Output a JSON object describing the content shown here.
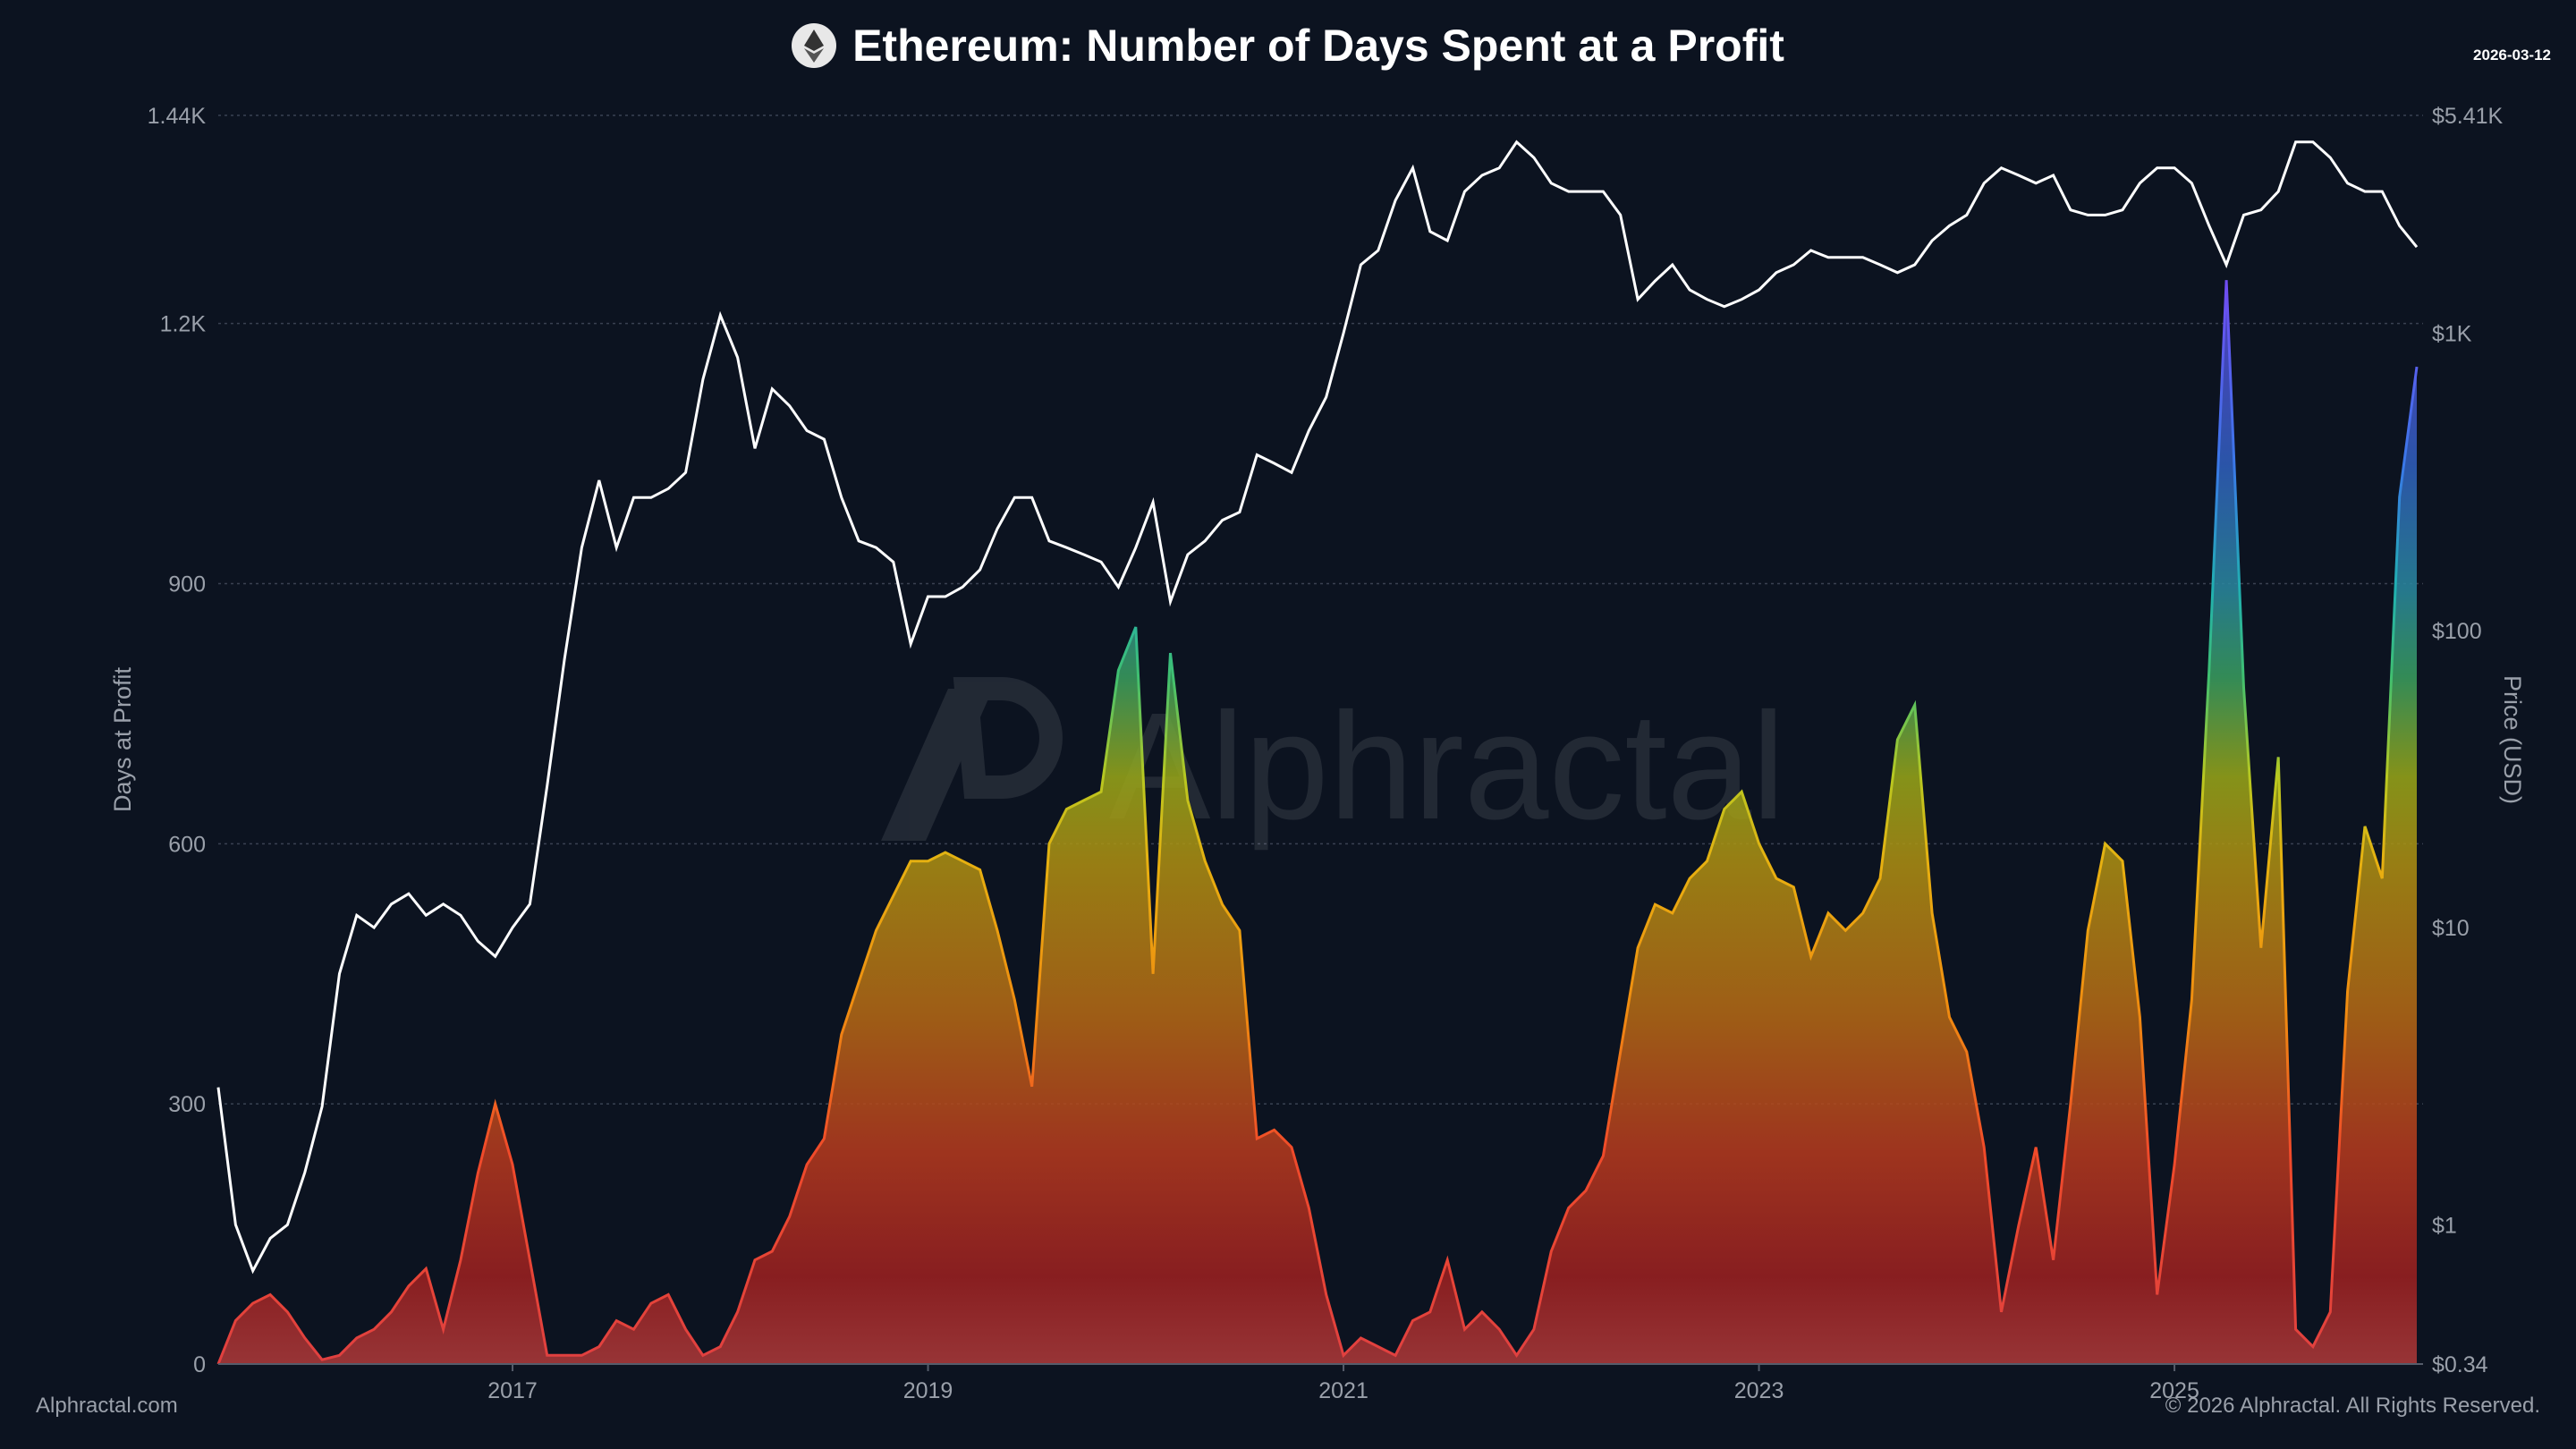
{
  "header": {
    "title": "Ethereum: Number of Days Spent at a Profit",
    "date": "2026-03-12",
    "icon": "ethereum-logo-icon"
  },
  "footer": {
    "left": "Alphractal.com",
    "right": "© 2026 Alphractal. All Rights Reserved."
  },
  "watermark": "Alphractal",
  "chart_data": {
    "type": "area",
    "title": "Ethereum: Number of Days Spent at a Profit",
    "ylabel": "Days at Profit",
    "y2label": "Price (USD)",
    "ylim": [
      0,
      1440
    ],
    "y2lim": [
      0.34,
      5410
    ],
    "y2scale": "log",
    "xlim": [
      "2015-08",
      "2026-03"
    ],
    "grid": true,
    "yticks": [
      "0",
      "300",
      "600",
      "900",
      "1.2K",
      "1.44K"
    ],
    "ytick_values": [
      0,
      300,
      600,
      900,
      1200,
      1440
    ],
    "y2ticks": [
      "$0.34",
      "$1",
      "$10",
      "$100",
      "$1K",
      "$5.41K"
    ],
    "y2tick_values": [
      0.34,
      1,
      10,
      100,
      1000,
      5410
    ],
    "xticks": [
      "2017",
      "2019",
      "2021",
      "2023",
      "2025"
    ],
    "colors": {
      "low": "#c0392b",
      "mid": "#e08a10",
      "high_mid": "#b8c020",
      "high": "#3aa0a0",
      "higher": "#3b6fe0",
      "max": "#9b30ff",
      "price": "#ffffff"
    },
    "dates": [
      "2015-08",
      "2015-09",
      "2015-10",
      "2015-11",
      "2015-12",
      "2016-01",
      "2016-02",
      "2016-03",
      "2016-04",
      "2016-05",
      "2016-06",
      "2016-07",
      "2016-08",
      "2016-09",
      "2016-10",
      "2016-11",
      "2016-12",
      "2017-01",
      "2017-02",
      "2017-03",
      "2017-04",
      "2017-05",
      "2017-06",
      "2017-07",
      "2017-08",
      "2017-09",
      "2017-10",
      "2017-11",
      "2017-12",
      "2018-01",
      "2018-02",
      "2018-03",
      "2018-04",
      "2018-05",
      "2018-06",
      "2018-07",
      "2018-08",
      "2018-09",
      "2018-10",
      "2018-11",
      "2018-12",
      "2019-01",
      "2019-02",
      "2019-03",
      "2019-04",
      "2019-05",
      "2019-06",
      "2019-07",
      "2019-08",
      "2019-09",
      "2019-10",
      "2019-11",
      "2019-12",
      "2020-01",
      "2020-02",
      "2020-03",
      "2020-04",
      "2020-05",
      "2020-06",
      "2020-07",
      "2020-08",
      "2020-09",
      "2020-10",
      "2020-11",
      "2020-12",
      "2021-01",
      "2021-02",
      "2021-03",
      "2021-04",
      "2021-05",
      "2021-06",
      "2021-07",
      "2021-08",
      "2021-09",
      "2021-10",
      "2021-11",
      "2021-12",
      "2022-01",
      "2022-02",
      "2022-03",
      "2022-04",
      "2022-05",
      "2022-06",
      "2022-07",
      "2022-08",
      "2022-09",
      "2022-10",
      "2022-11",
      "2022-12",
      "2023-01",
      "2023-02",
      "2023-03",
      "2023-04",
      "2023-05",
      "2023-06",
      "2023-07",
      "2023-08",
      "2023-09",
      "2023-10",
      "2023-11",
      "2023-12",
      "2024-01",
      "2024-02",
      "2024-03",
      "2024-04",
      "2024-05",
      "2024-06",
      "2024-07",
      "2024-08",
      "2024-09",
      "2024-10",
      "2024-11",
      "2024-12",
      "2025-01",
      "2025-02",
      "2025-03",
      "2025-04",
      "2025-05",
      "2025-06",
      "2025-07",
      "2025-08",
      "2025-09",
      "2025-10",
      "2025-11",
      "2025-12",
      "2026-01",
      "2026-02",
      "2026-03"
    ],
    "series": [
      {
        "name": "Days at Profit",
        "axis": "left",
        "values": [
          0,
          50,
          70,
          80,
          60,
          30,
          5,
          10,
          30,
          40,
          60,
          90,
          110,
          40,
          120,
          220,
          300,
          230,
          120,
          10,
          10,
          10,
          20,
          50,
          40,
          70,
          80,
          40,
          10,
          20,
          60,
          120,
          130,
          170,
          230,
          260,
          380,
          440,
          500,
          540,
          580,
          580,
          590,
          580,
          570,
          500,
          420,
          320,
          600,
          640,
          650,
          660,
          800,
          850,
          450,
          820,
          650,
          580,
          530,
          500,
          260,
          270,
          250,
          180,
          80,
          10,
          30,
          20,
          10,
          50,
          60,
          120,
          40,
          60,
          40,
          10,
          40,
          130,
          180,
          200,
          240,
          360,
          480,
          530,
          520,
          560,
          580,
          640,
          660,
          600,
          560,
          550,
          470,
          520,
          500,
          520,
          560,
          720,
          760,
          520,
          400,
          360,
          250,
          60,
          160,
          250,
          120,
          300,
          500,
          600,
          580,
          400,
          80,
          230,
          420,
          800,
          1250,
          780,
          480,
          700,
          40,
          20,
          60,
          430,
          620,
          560,
          1000,
          1150
        ]
      },
      {
        "name": "Price (USD)",
        "axis": "right",
        "values": [
          2.9,
          1.0,
          0.7,
          0.9,
          1.0,
          1.5,
          2.5,
          7,
          11,
          10,
          12,
          13,
          11,
          12,
          11,
          9,
          8,
          10,
          12,
          30,
          80,
          190,
          320,
          190,
          280,
          280,
          300,
          340,
          700,
          1150,
          830,
          410,
          650,
          570,
          470,
          440,
          280,
          200,
          190,
          170,
          90,
          130,
          130,
          140,
          160,
          220,
          280,
          280,
          200,
          190,
          180,
          170,
          140,
          190,
          270,
          125,
          180,
          200,
          235,
          250,
          390,
          365,
          340,
          470,
          610,
          1000,
          1700,
          1900,
          2800,
          3600,
          2200,
          2050,
          3000,
          3400,
          3600,
          4400,
          3900,
          3200,
          3000,
          3000,
          3000,
          2500,
          1300,
          1500,
          1700,
          1400,
          1300,
          1230,
          1300,
          1400,
          1600,
          1700,
          1900,
          1800,
          1800,
          1800,
          1700,
          1600,
          1700,
          2050,
          2300,
          2500,
          3200,
          3600,
          3400,
          3200,
          3400,
          2600,
          2500,
          2500,
          2600,
          3200,
          3600,
          3600,
          3200,
          2300,
          1700,
          2500,
          2600,
          3000,
          4400,
          4400,
          3900,
          3200,
          3000,
          3000,
          2300,
          1950
        ]
      }
    ]
  }
}
